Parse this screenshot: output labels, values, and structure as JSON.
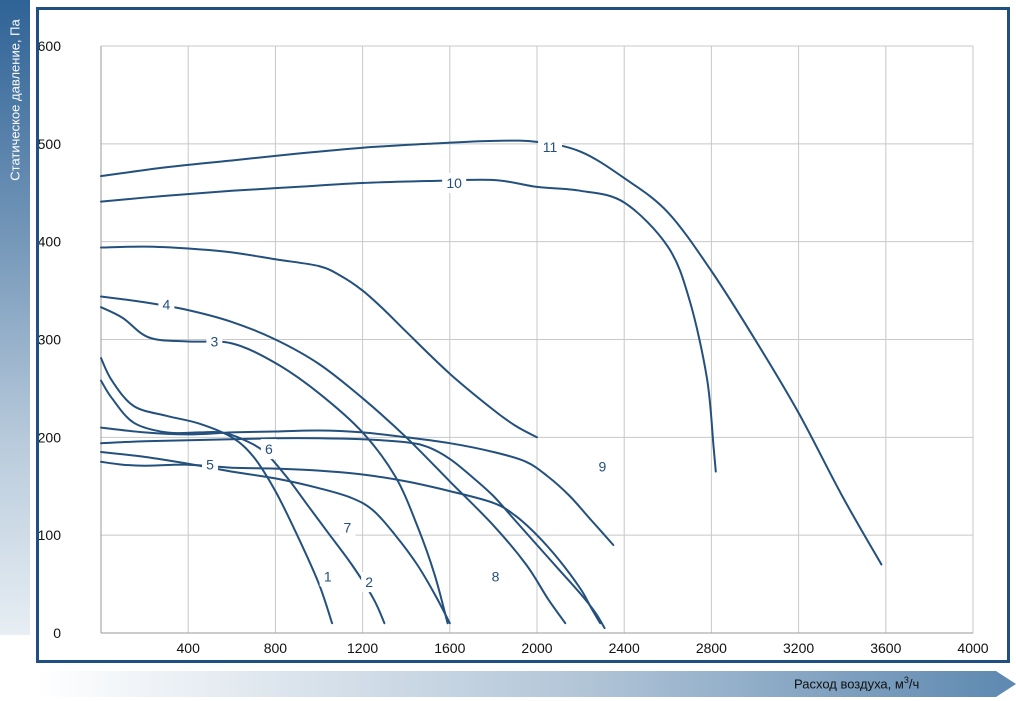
{
  "chart_data": {
    "type": "line",
    "title": "",
    "ylabel": "Статическое давление, Па",
    "xlabel": "Расход воздуха, м",
    "xlabel_sup": "3",
    "xlabel_suffix": "/ч",
    "xlim": [
      0,
      4000
    ],
    "ylim": [
      0,
      600
    ],
    "x_ticks": [
      "400",
      "800",
      "1200",
      "1600",
      "2000",
      "2400",
      "2800",
      "3200",
      "3600",
      "4000"
    ],
    "y_ticks": [
      "0",
      "100",
      "200",
      "300",
      "400",
      "500",
      "600"
    ],
    "grid": true,
    "legend": "inline curve numbers",
    "colors": {
      "curve": "#23507d",
      "frame": "#1f5081",
      "grid": "#c8c8c8"
    },
    "series": [
      {
        "name": "1",
        "label_at": [
          1040,
          58
        ],
        "points": [
          [
            0,
            281
          ],
          [
            50,
            258
          ],
          [
            150,
            232
          ],
          [
            300,
            222
          ],
          [
            450,
            214
          ],
          [
            600,
            200
          ],
          [
            700,
            180
          ],
          [
            800,
            145
          ],
          [
            900,
            100
          ],
          [
            1000,
            50
          ],
          [
            1060,
            10
          ]
        ]
      },
      {
        "name": "2",
        "label_at": [
          1230,
          52
        ],
        "points": [
          [
            0,
            258
          ],
          [
            50,
            240
          ],
          [
            150,
            215
          ],
          [
            300,
            205
          ],
          [
            450,
            205
          ],
          [
            550,
            205
          ],
          [
            650,
            198
          ],
          [
            750,
            185
          ],
          [
            850,
            160
          ],
          [
            950,
            130
          ],
          [
            1050,
            100
          ],
          [
            1150,
            70
          ],
          [
            1250,
            35
          ],
          [
            1300,
            10
          ]
        ]
      },
      {
        "name": "3",
        "label_at": [
          520,
          298
        ],
        "points": [
          [
            0,
            333
          ],
          [
            100,
            322
          ],
          [
            220,
            302
          ],
          [
            400,
            298
          ],
          [
            600,
            296
          ],
          [
            800,
            276
          ],
          [
            1000,
            245
          ],
          [
            1200,
            205
          ],
          [
            1350,
            160
          ],
          [
            1450,
            110
          ],
          [
            1530,
            60
          ],
          [
            1590,
            10
          ]
        ]
      },
      {
        "name": "4",
        "label_at": [
          300,
          336
        ],
        "points": [
          [
            0,
            344
          ],
          [
            200,
            338
          ],
          [
            400,
            330
          ],
          [
            600,
            318
          ],
          [
            800,
            300
          ],
          [
            1000,
            275
          ],
          [
            1200,
            240
          ],
          [
            1400,
            200
          ],
          [
            1600,
            155
          ],
          [
            1800,
            110
          ],
          [
            1950,
            70
          ],
          [
            2050,
            35
          ],
          [
            2130,
            10
          ]
        ]
      },
      {
        "name": "5",
        "label_at": [
          500,
          172
        ],
        "points": [
          [
            0,
            185
          ],
          [
            200,
            180
          ],
          [
            400,
            173
          ],
          [
            600,
            165
          ],
          [
            800,
            158
          ],
          [
            1000,
            148
          ],
          [
            1150,
            138
          ],
          [
            1250,
            125
          ],
          [
            1350,
            100
          ],
          [
            1450,
            70
          ],
          [
            1530,
            40
          ],
          [
            1600,
            10
          ]
        ]
      },
      {
        "name": "6",
        "label_at": [
          770,
          188
        ],
        "points": [
          [
            0,
            394
          ],
          [
            200,
            395
          ],
          [
            400,
            393
          ],
          [
            600,
            389
          ],
          [
            800,
            382
          ],
          [
            1000,
            375
          ],
          [
            1100,
            365
          ],
          [
            1200,
            350
          ],
          [
            1300,
            330
          ],
          [
            1400,
            308
          ],
          [
            1600,
            265
          ],
          [
            1800,
            228
          ],
          [
            1900,
            212
          ],
          [
            2000,
            200
          ]
        ]
      },
      {
        "name": "7",
        "label_at": [
          1130,
          108
        ],
        "points": [
          [
            0,
            175
          ],
          [
            100,
            172
          ],
          [
            200,
            171
          ],
          [
            400,
            172
          ],
          [
            600,
            169
          ],
          [
            800,
            168
          ],
          [
            1000,
            166
          ],
          [
            1200,
            162
          ],
          [
            1400,
            155
          ],
          [
            1600,
            145
          ],
          [
            1800,
            133
          ],
          [
            1900,
            120
          ],
          [
            2000,
            100
          ],
          [
            2100,
            75
          ],
          [
            2200,
            45
          ],
          [
            2250,
            25
          ],
          [
            2290,
            10
          ]
        ]
      },
      {
        "name": "8",
        "label_at": [
          1810,
          58
        ],
        "points": [
          [
            0,
            194
          ],
          [
            200,
            196
          ],
          [
            400,
            197
          ],
          [
            600,
            198
          ],
          [
            800,
            199
          ],
          [
            1000,
            199
          ],
          [
            1200,
            198
          ],
          [
            1400,
            195
          ],
          [
            1500,
            190
          ],
          [
            1600,
            178
          ],
          [
            1700,
            160
          ],
          [
            1800,
            140
          ],
          [
            1900,
            115
          ],
          [
            2000,
            90
          ],
          [
            2100,
            65
          ],
          [
            2200,
            40
          ],
          [
            2270,
            20
          ],
          [
            2310,
            5
          ]
        ]
      },
      {
        "name": "9",
        "label_at": [
          2300,
          170
        ],
        "points": [
          [
            0,
            210
          ],
          [
            200,
            205
          ],
          [
            400,
            203
          ],
          [
            600,
            205
          ],
          [
            800,
            206
          ],
          [
            1000,
            207
          ],
          [
            1200,
            205
          ],
          [
            1400,
            200
          ],
          [
            1600,
            194
          ],
          [
            1800,
            185
          ],
          [
            1950,
            175
          ],
          [
            2050,
            160
          ],
          [
            2150,
            140
          ],
          [
            2250,
            115
          ],
          [
            2350,
            90
          ]
        ]
      },
      {
        "name": "10",
        "label_at": [
          1620,
          460
        ],
        "points": [
          [
            0,
            441
          ],
          [
            300,
            447
          ],
          [
            600,
            452
          ],
          [
            900,
            456
          ],
          [
            1200,
            460
          ],
          [
            1500,
            462
          ],
          [
            1800,
            463
          ],
          [
            2000,
            456
          ],
          [
            2200,
            452
          ],
          [
            2400,
            440
          ],
          [
            2600,
            395
          ],
          [
            2700,
            340
          ],
          [
            2780,
            260
          ],
          [
            2810,
            190
          ],
          [
            2820,
            165
          ]
        ]
      },
      {
        "name": "11",
        "label_at": [
          2060,
          497
        ],
        "points": [
          [
            0,
            467
          ],
          [
            300,
            476
          ],
          [
            600,
            483
          ],
          [
            900,
            490
          ],
          [
            1200,
            496
          ],
          [
            1500,
            500
          ],
          [
            1800,
            503
          ],
          [
            2000,
            502
          ],
          [
            2200,
            492
          ],
          [
            2400,
            465
          ],
          [
            2600,
            430
          ],
          [
            2800,
            370
          ],
          [
            3000,
            300
          ],
          [
            3200,
            225
          ],
          [
            3400,
            140
          ],
          [
            3580,
            70
          ]
        ]
      }
    ]
  }
}
